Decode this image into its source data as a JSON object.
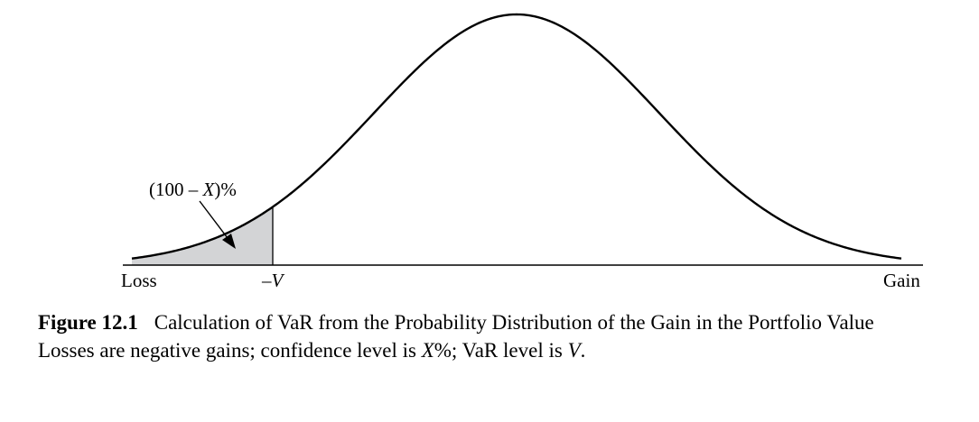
{
  "diagram": {
    "tail_label_prefix": "(100 – ",
    "tail_label_var": "X",
    "tail_label_suffix": ")%",
    "left_axis_label": "Loss",
    "var_marker_prefix": "–",
    "var_marker_var": "V",
    "right_axis_label": "Gain",
    "colors": {
      "curve": "#000000",
      "shaded_tail": "#d3d4d6",
      "axis": "#000000"
    }
  },
  "caption": {
    "figure_number": "Figure 12.1",
    "title": "Calculation of VaR from the Probability Distribution of the Gain in the Portfolio Value",
    "note_part1": "Losses are negative gains; confidence level is ",
    "note_var1": "X",
    "note_part2": "%; VaR level is ",
    "note_var2": "V",
    "note_part3": "."
  }
}
